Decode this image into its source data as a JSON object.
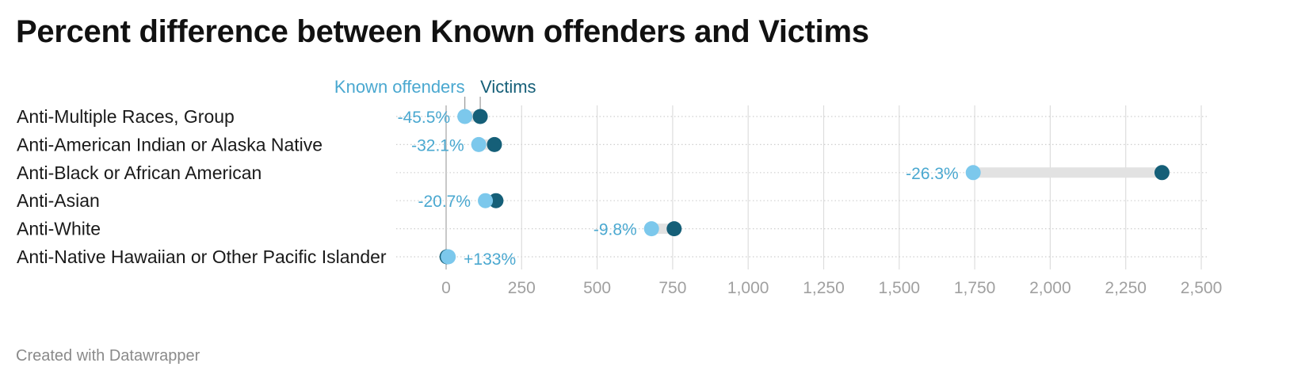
{
  "title": "Percent difference between Known offenders and Victims",
  "footer": "Created with Datawrapper",
  "colors": {
    "known_offenders": "#7cc8ec",
    "victims": "#155f78",
    "known_offenders_text": "#4aa8d0",
    "victims_text": "#155f78",
    "range_bar": "#e2e2e2",
    "grid": "#dddddd",
    "zero_line": "#bbbbbb"
  },
  "chart_data": {
    "type": "dot-range",
    "title": "Percent difference between Known offenders and Victims",
    "series": [
      {
        "name": "Known offenders"
      },
      {
        "name": "Victims"
      }
    ],
    "categories": [
      "Anti-Multiple Races, Group",
      "Anti-American Indian or Alaska Native",
      "Anti-Black or African American",
      "Anti-Asian",
      "Anti-White",
      "Anti-Native Hawaiian or Other Pacific Islander"
    ],
    "rows": [
      {
        "label": "Anti-Multiple Races, Group",
        "known_offenders": 62,
        "victims": 113,
        "pct": "-45.5%"
      },
      {
        "label": "Anti-American Indian or Alaska Native",
        "known_offenders": 108,
        "victims": 160,
        "pct": "-32.1%"
      },
      {
        "label": "Anti-Black or African American",
        "known_offenders": 1745,
        "victims": 2370,
        "pct": "-26.3%"
      },
      {
        "label": "Anti-Asian",
        "known_offenders": 130,
        "victims": 165,
        "pct": "-20.7%"
      },
      {
        "label": "Anti-White",
        "known_offenders": 680,
        "victims": 755,
        "pct": "-9.8%"
      },
      {
        "label": "Anti-Native Hawaiian or Other Pacific Islander",
        "known_offenders": 7,
        "victims": 3,
        "pct": "+133%"
      }
    ],
    "xlim": [
      -170,
      2500
    ],
    "ticks": [
      {
        "value": 0,
        "label": "0"
      },
      {
        "value": 250,
        "label": "250"
      },
      {
        "value": 500,
        "label": "500"
      },
      {
        "value": 750,
        "label": "750"
      },
      {
        "value": 1000,
        "label": "1,000"
      },
      {
        "value": 1250,
        "label": "1,250"
      },
      {
        "value": 1500,
        "label": "1,500"
      },
      {
        "value": 1750,
        "label": "1,750"
      },
      {
        "value": 2000,
        "label": "2,000"
      },
      {
        "value": 2250,
        "label": "2,250"
      },
      {
        "value": 2500,
        "label": "2,500"
      }
    ],
    "grid": true,
    "legend": "top, inline above first row"
  }
}
